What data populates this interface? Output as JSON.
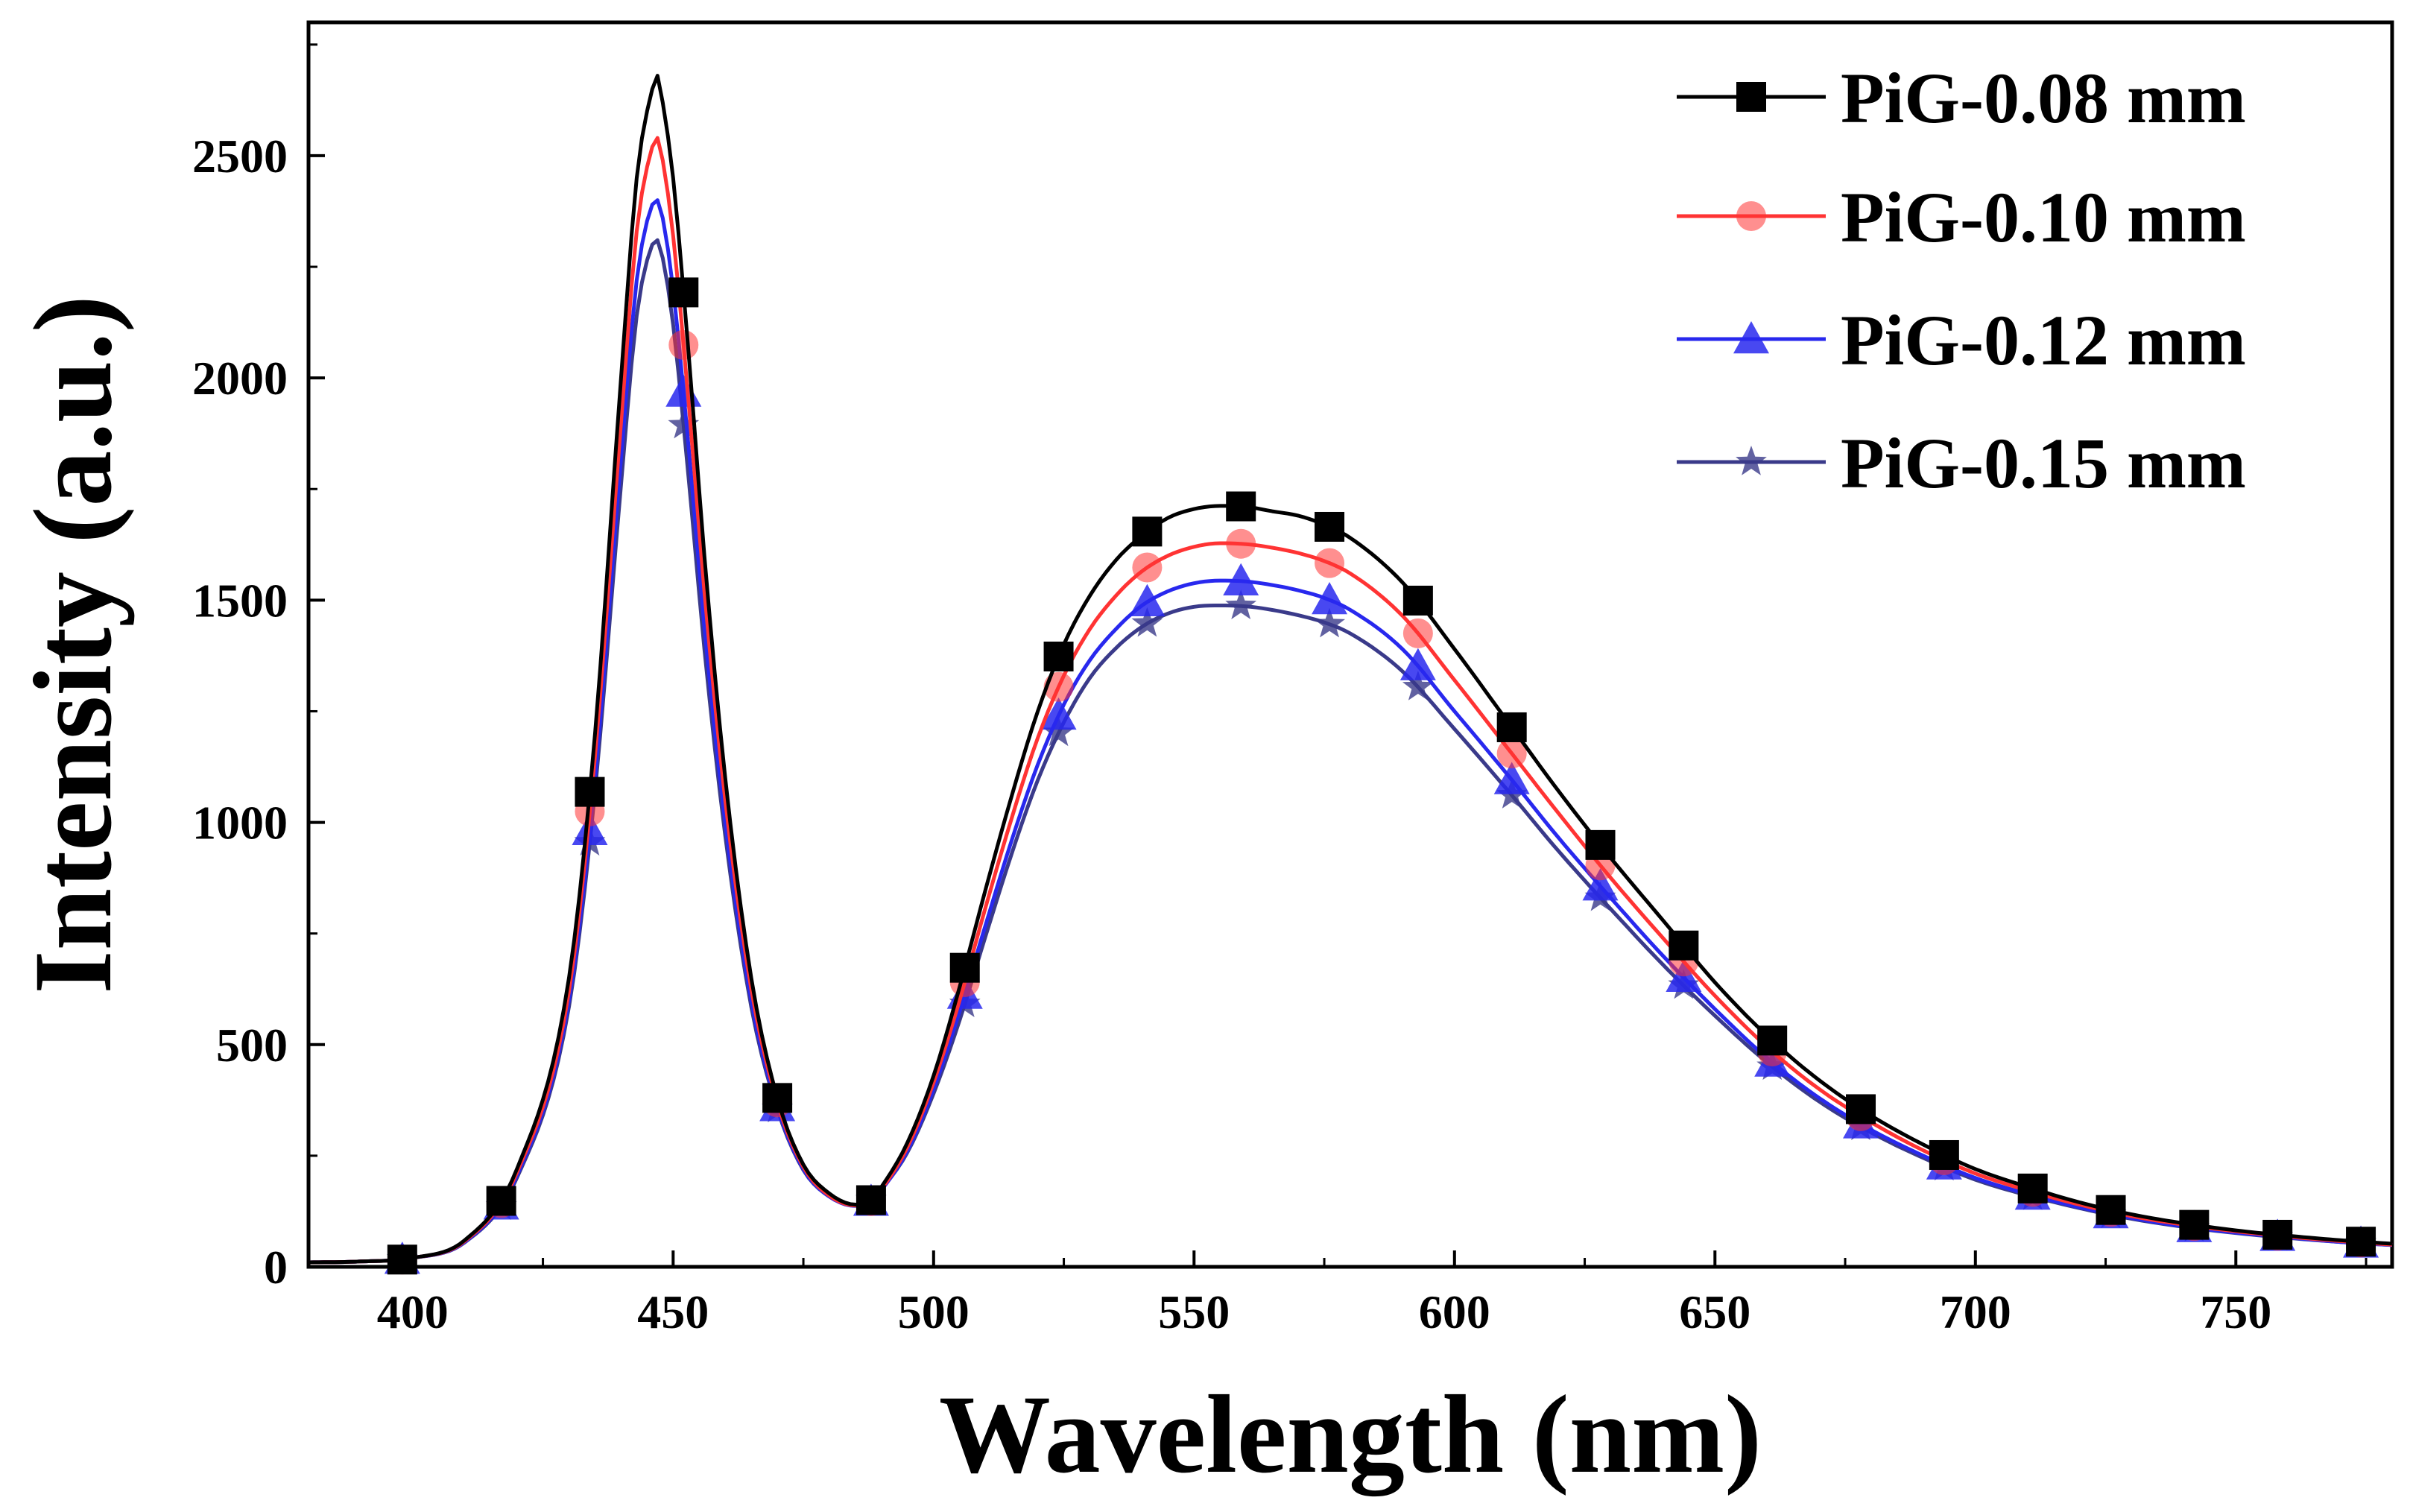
{
  "chart_data": {
    "type": "line",
    "title": "",
    "xlabel": "Wavelength (nm)",
    "ylabel": "Intensity (a.u.)",
    "xlim": [
      380,
      780
    ],
    "ylim": [
      0,
      2800
    ],
    "xticks": [
      400,
      450,
      500,
      550,
      600,
      650,
      700,
      750
    ],
    "yticks": [
      0,
      500,
      1000,
      1500,
      2000,
      2500
    ],
    "xtick_labels": [
      "400",
      "450",
      "500",
      "550",
      "600",
      "650",
      "700",
      "750"
    ],
    "ytick_labels": [
      "0",
      "500",
      "1000",
      "1500",
      "2000",
      "2500"
    ],
    "legend_position": "top-right",
    "grid": false,
    "x": [
      380,
      390,
      400,
      410,
      420,
      430,
      435,
      440,
      443,
      446,
      447,
      448,
      450,
      453,
      456,
      460,
      465,
      470,
      475,
      480,
      485,
      488,
      490,
      495,
      500,
      505,
      510,
      515,
      520,
      525,
      530,
      535,
      540,
      545,
      550,
      555,
      560,
      565,
      570,
      575,
      580,
      590,
      600,
      610,
      620,
      630,
      640,
      650,
      660,
      670,
      680,
      690,
      700,
      710,
      720,
      730,
      740,
      750,
      760,
      770,
      780
    ],
    "series": [
      {
        "name": "PiG-0.08 mm",
        "legend_label": "PiG-0.08 mm",
        "color": "#000000",
        "marker": "square",
        "y": [
          10,
          12,
          20,
          60,
          220,
          650,
          1200,
          2000,
          2450,
          2650,
          2680,
          2620,
          2450,
          2050,
          1600,
          1100,
          650,
          380,
          230,
          165,
          140,
          150,
          180,
          280,
          430,
          630,
          850,
          1060,
          1250,
          1400,
          1510,
          1590,
          1645,
          1685,
          1705,
          1712,
          1710,
          1700,
          1690,
          1670,
          1640,
          1540,
          1390,
          1230,
          1070,
          920,
          780,
          640,
          520,
          420,
          340,
          275,
          220,
          180,
          145,
          118,
          98,
          82,
          70,
          60,
          52
        ],
        "marker_x": [
          398,
          417,
          434,
          452,
          470,
          488,
          506,
          524,
          541,
          559,
          576,
          593,
          611,
          628,
          644,
          661,
          678,
          694,
          711,
          726,
          742,
          758,
          774
        ]
      },
      {
        "name": "PiG-0.10 mm",
        "legend_label": "PiG-0.10 mm",
        "color": "#ff3333",
        "marker": "circle",
        "y": [
          10,
          12,
          20,
          58,
          212,
          620,
          1150,
          1900,
          2330,
          2520,
          2540,
          2490,
          2320,
          1940,
          1520,
          1050,
          625,
          370,
          225,
          160,
          138,
          148,
          175,
          270,
          415,
          600,
          810,
          1010,
          1190,
          1330,
          1435,
          1510,
          1565,
          1600,
          1620,
          1628,
          1626,
          1618,
          1606,
          1588,
          1560,
          1465,
          1320,
          1170,
          1020,
          875,
          740,
          610,
          495,
          400,
          325,
          262,
          210,
          172,
          140,
          114,
          95,
          80,
          68,
          58,
          50
        ],
        "marker_x": [
          398,
          417,
          434,
          452,
          470,
          488,
          506,
          524,
          541,
          559,
          576,
          593,
          611,
          628,
          644,
          661,
          678,
          694,
          711,
          726,
          742,
          758,
          774
        ]
      },
      {
        "name": "PiG-0.12 mm",
        "legend_label": "PiG-0.12 mm",
        "color": "#2828ee",
        "marker": "triangle",
        "y": [
          10,
          12,
          20,
          56,
          205,
          600,
          1100,
          1820,
          2220,
          2390,
          2400,
          2360,
          2200,
          1840,
          1440,
          1000,
          600,
          360,
          220,
          158,
          137,
          147,
          173,
          262,
          400,
          575,
          770,
          960,
          1130,
          1265,
          1365,
          1435,
          1488,
          1520,
          1538,
          1544,
          1542,
          1534,
          1522,
          1505,
          1478,
          1390,
          1250,
          1110,
          965,
          830,
          700,
          580,
          470,
          380,
          308,
          250,
          200,
          164,
          134,
          110,
          91,
          77,
          66,
          56,
          49
        ],
        "marker_x": [
          398,
          417,
          434,
          452,
          470,
          488,
          506,
          524,
          541,
          559,
          576,
          593,
          611,
          628,
          644,
          661,
          678,
          694,
          711,
          726,
          742,
          758,
          774
        ]
      },
      {
        "name": "PiG-0.15 mm",
        "legend_label": "PiG-0.15 mm",
        "color": "#3a3a8a",
        "marker": "star",
        "y": [
          10,
          12,
          20,
          55,
          200,
          585,
          1070,
          1760,
          2140,
          2300,
          2310,
          2270,
          2120,
          1770,
          1390,
          970,
          585,
          355,
          218,
          158,
          138,
          150,
          175,
          258,
          390,
          555,
          745,
          930,
          1095,
          1225,
          1325,
          1392,
          1440,
          1470,
          1485,
          1488,
          1486,
          1478,
          1466,
          1450,
          1425,
          1340,
          1210,
          1075,
          935,
          805,
          680,
          565,
          460,
          372,
          302,
          245,
          196,
          161,
          132,
          108,
          90,
          76,
          65,
          56,
          49
        ],
        "marker_x": [
          398,
          417,
          434,
          452,
          470,
          488,
          506,
          524,
          541,
          559,
          576,
          593,
          611,
          628,
          644,
          661,
          678,
          694,
          711,
          726,
          742,
          758,
          774
        ]
      }
    ]
  }
}
